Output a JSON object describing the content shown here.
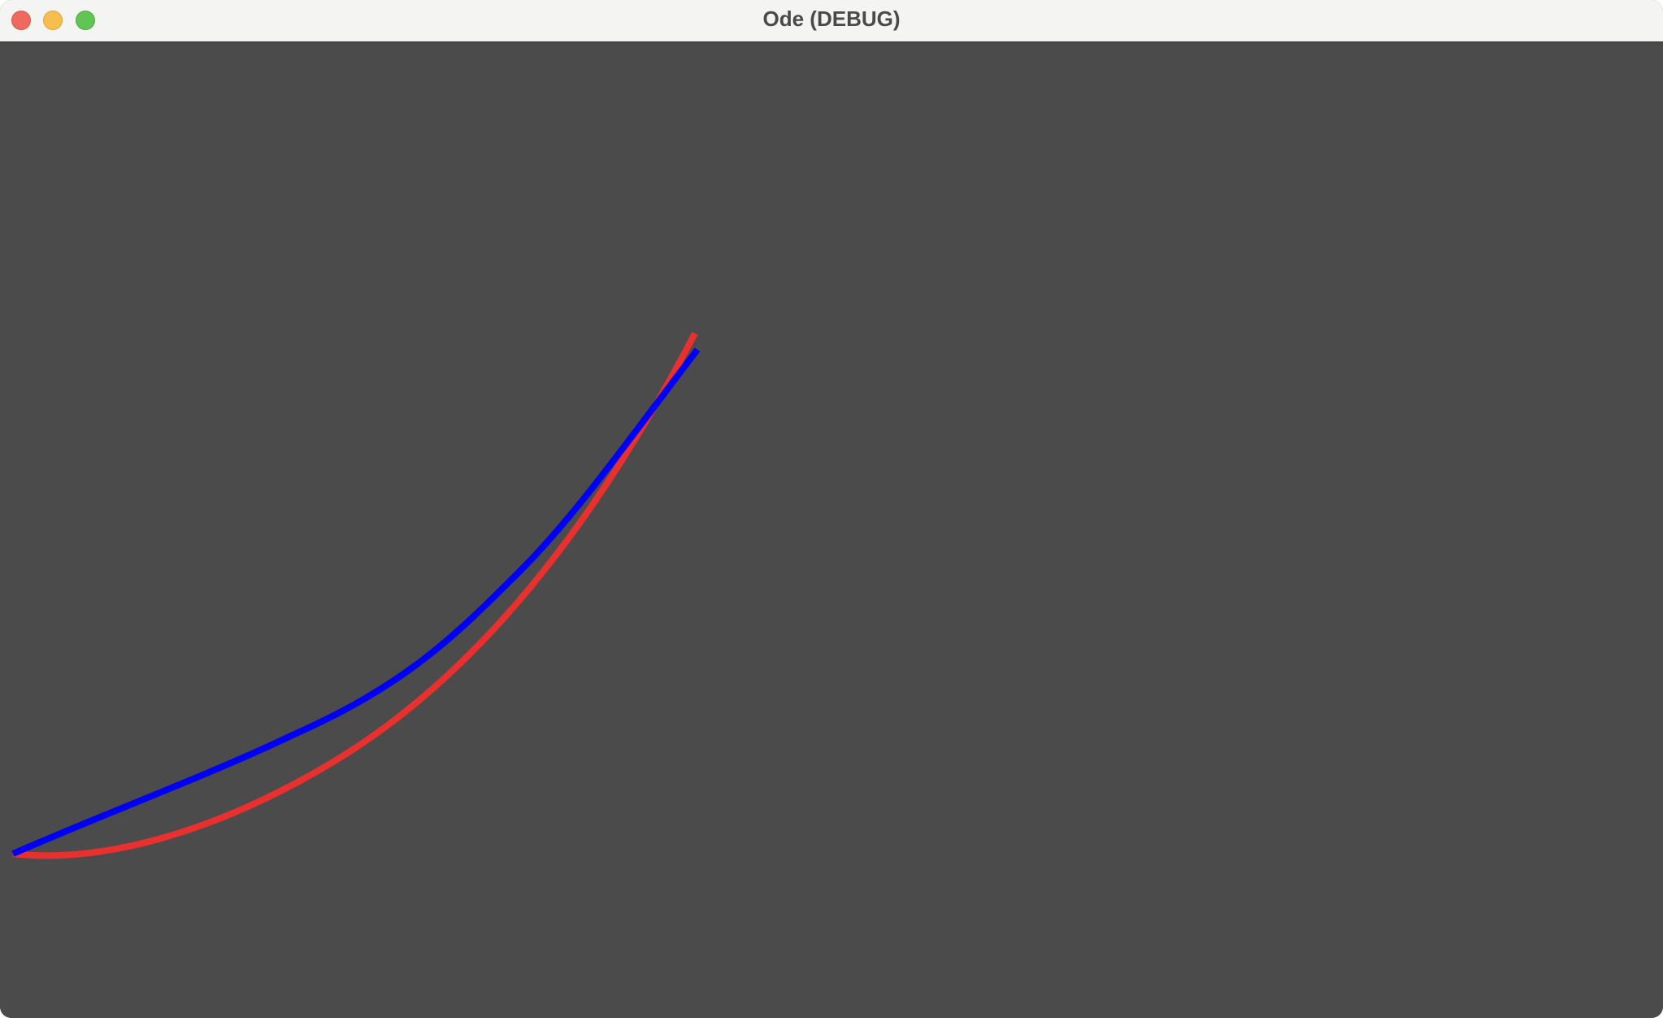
{
  "window": {
    "title": "Ode (DEBUG)"
  },
  "titlebar": {
    "buttons": [
      {
        "name": "close",
        "icon": "close-icon",
        "color": "#ee6a5f"
      },
      {
        "name": "minimize",
        "icon": "minimize-icon",
        "color": "#f5be4f"
      },
      {
        "name": "maximize",
        "icon": "maximize-icon",
        "color": "#61c454"
      }
    ]
  },
  "canvas": {
    "background": "#4b4b4b",
    "curves": [
      {
        "color": "#e8302e"
      },
      {
        "color": "#0000f5"
      }
    ]
  }
}
